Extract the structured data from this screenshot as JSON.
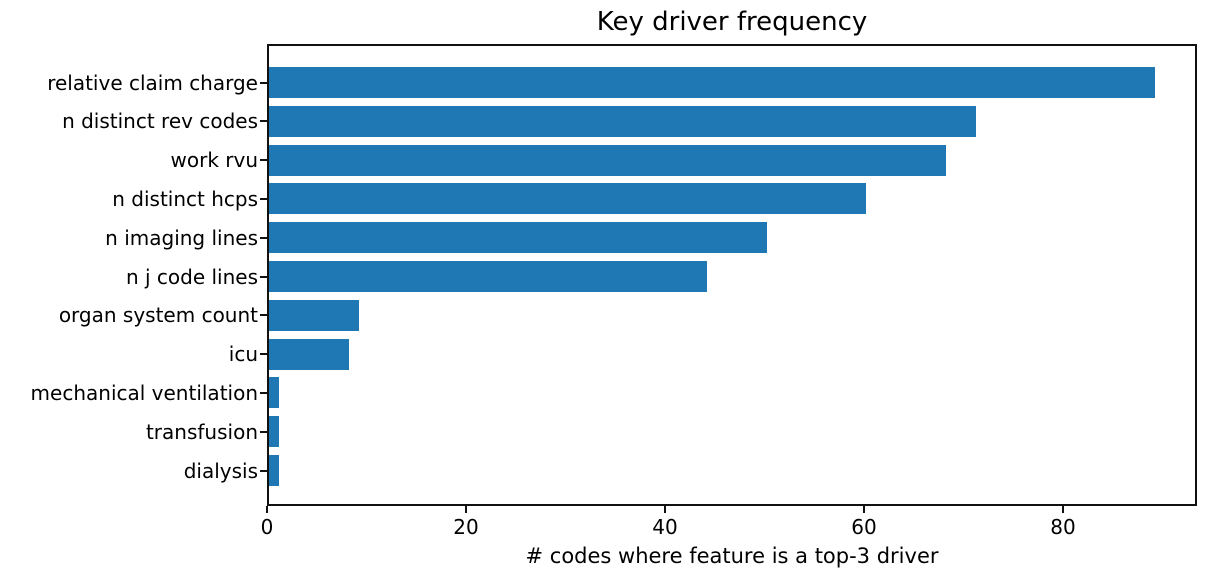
{
  "chart_data": {
    "type": "bar",
    "orientation": "horizontal",
    "title": "Key driver frequency",
    "xlabel": "# codes where feature is a top-3 driver",
    "categories": [
      "relative claim charge",
      "n distinct rev codes",
      "work rvu",
      "n distinct hcps",
      "n imaging lines",
      "n j code lines",
      "organ system count",
      "icu",
      "mechanical ventilation",
      "transfusion",
      "dialysis"
    ],
    "values": [
      89,
      71,
      68,
      60,
      50,
      44,
      9,
      8,
      1,
      1,
      1
    ],
    "xticks": [
      "0",
      "20",
      "40",
      "60",
      "80"
    ],
    "xtick_values": [
      0,
      20,
      40,
      60,
      80
    ],
    "xlim": [
      0,
      93.45
    ],
    "grid": false,
    "legend_position": "none",
    "bar_color": "#1f77b4",
    "axis_color": "#111111",
    "text_color": "#000000",
    "background_color": "#ffffff"
  }
}
